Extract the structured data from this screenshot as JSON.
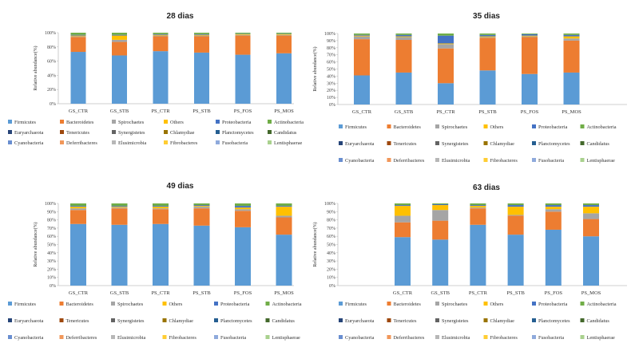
{
  "legend": [
    "Firmicutes",
    "Bacteroidetes",
    "Spirochaetes",
    "Others",
    "Proteobacteria",
    "Actinobacteria",
    "Euryarchaeota",
    "Tenericutes",
    "Synergistetes",
    "Chlamydiae",
    "Planctomycetes",
    "Candidatus",
    "Cyanobacteria",
    "Deferribacteres",
    "Elusimicrobia",
    "Fibrobacteres",
    "Fusobacteria",
    "Lentisphaerae"
  ],
  "colors": [
    "#5B9BD5",
    "#ED7D31",
    "#A5A5A5",
    "#FFC000",
    "#4472C4",
    "#70AD47",
    "#264478",
    "#9E480E",
    "#636363",
    "#997300",
    "#255E91",
    "#43682B",
    "#698ED0",
    "#F1975A",
    "#B7B7B7",
    "#FFCD33",
    "#8FAADC",
    "#A9D18E"
  ],
  "chart_data": [
    {
      "type": "bar",
      "stacked": true,
      "title": "28 dias",
      "ylabel": "Relative abundance(%)",
      "ylim": [
        0,
        100
      ],
      "yticks": [
        "0%",
        "20%",
        "40%",
        "60%",
        "80%",
        "100%"
      ],
      "categories": [
        "GS_CTR",
        "GS_STB",
        "PS_CTR",
        "PS_STB",
        "PS_FOS",
        "PS_MOS"
      ],
      "series": [
        {
          "name": "Firmicutes",
          "values": [
            73,
            68,
            74,
            72,
            69,
            71
          ]
        },
        {
          "name": "Bacteroidetes",
          "values": [
            21,
            19,
            21,
            23,
            27,
            25
          ]
        },
        {
          "name": "Spirochaetes",
          "values": [
            1,
            3,
            1,
            1,
            1,
            1
          ]
        },
        {
          "name": "Others",
          "values": [
            1,
            6,
            1,
            1,
            1,
            1
          ]
        },
        {
          "name": "Proteobacteria",
          "values": [
            1,
            1,
            1,
            1,
            0.5,
            0.5
          ]
        },
        {
          "name": "Actinobacteria",
          "values": [
            3,
            3,
            2,
            2,
            1.5,
            1.5
          ]
        }
      ]
    },
    {
      "type": "bar",
      "stacked": true,
      "title": "35 dias",
      "ylabel": "Relative abundance(%)",
      "ylim": [
        0,
        100
      ],
      "yticks": [
        "0%",
        "10%",
        "20%",
        "30%",
        "40%",
        "50%",
        "60%",
        "70%",
        "80%",
        "90%",
        "100%"
      ],
      "categories": [
        "GS_CTR",
        "GS_STB",
        "PS_CTR",
        "PS_STB",
        "PS_FOS",
        "PS_MOS"
      ],
      "series": [
        {
          "name": "Firmicutes",
          "values": [
            41,
            45,
            30,
            48,
            43,
            45
          ]
        },
        {
          "name": "Bacteroidetes",
          "values": [
            51,
            46,
            49,
            46,
            52,
            45
          ]
        },
        {
          "name": "Spirochaetes",
          "values": [
            4,
            4,
            6,
            1,
            1,
            3
          ]
        },
        {
          "name": "Others",
          "values": [
            1,
            1,
            1,
            1,
            1,
            3
          ]
        },
        {
          "name": "Proteobacteria",
          "values": [
            1,
            2,
            11,
            2,
            2,
            2
          ]
        },
        {
          "name": "Actinobacteria",
          "values": [
            2,
            2,
            3,
            2,
            1,
            2
          ]
        }
      ]
    },
    {
      "type": "bar",
      "stacked": true,
      "title": "49 dias",
      "ylabel": "Relative abundance(%)",
      "ylim": [
        0,
        100
      ],
      "yticks": [
        "0%",
        "10%",
        "20%",
        "30%",
        "40%",
        "50%",
        "60%",
        "70%",
        "80%",
        "90%",
        "100%"
      ],
      "categories": [
        "GS_CTR",
        "GS_STB",
        "PS_CTR",
        "PS_STB",
        "PS_FOS",
        "PS_MOS"
      ],
      "series": [
        {
          "name": "Firmicutes",
          "values": [
            75,
            74,
            75,
            73,
            71,
            62
          ]
        },
        {
          "name": "Bacteroidetes",
          "values": [
            17,
            20,
            18,
            21,
            20,
            21
          ]
        },
        {
          "name": "Spirochaetes",
          "values": [
            2,
            1,
            1,
            2,
            2,
            2
          ]
        },
        {
          "name": "Others",
          "values": [
            2,
            1,
            2,
            1,
            2,
            11
          ]
        },
        {
          "name": "Proteobacteria",
          "values": [
            1,
            1,
            1,
            1,
            2,
            1
          ]
        },
        {
          "name": "Actinobacteria",
          "values": [
            3,
            3,
            3,
            2,
            3,
            3
          ]
        }
      ]
    },
    {
      "type": "bar",
      "stacked": true,
      "title": "63 dias",
      "ylabel": "Relative abundance(%)",
      "ylim": [
        0,
        100
      ],
      "yticks": [
        "0%",
        "10%",
        "20%",
        "30%",
        "40%",
        "50%",
        "60%",
        "70%",
        "80%",
        "90%",
        "100%"
      ],
      "categories": [
        "GS_CTR",
        "GS_STB",
        "PS_CTR",
        "PS_STB",
        "PS_FOS",
        "PS_MOS"
      ],
      "series": [
        {
          "name": "Firmicutes",
          "values": [
            59,
            56,
            74,
            62,
            68,
            60
          ]
        },
        {
          "name": "Bacteroidetes",
          "values": [
            18,
            23,
            20,
            23,
            22,
            21
          ]
        },
        {
          "name": "Spirochaetes",
          "values": [
            8,
            13,
            1,
            1,
            3,
            7
          ]
        },
        {
          "name": "Others",
          "values": [
            12,
            6,
            2,
            10,
            3,
            8
          ]
        },
        {
          "name": "Proteobacteria",
          "values": [
            1,
            1,
            1,
            2,
            2,
            2
          ]
        },
        {
          "name": "Actinobacteria",
          "values": [
            2,
            1,
            2,
            2,
            2,
            2
          ]
        }
      ]
    }
  ]
}
